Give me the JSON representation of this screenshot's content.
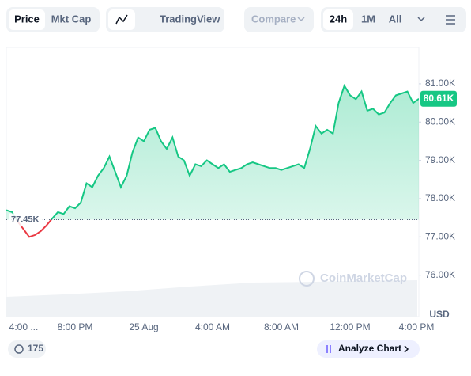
{
  "toolbar": {
    "tabs": [
      "Price",
      "Mkt Cap"
    ],
    "tradingview": "TradingView",
    "compare": "Compare",
    "ranges": [
      "24h",
      "1M",
      "All"
    ]
  },
  "chart_data": {
    "type": "line",
    "currency": "USD",
    "watermark": "CoinMarketCap",
    "color": "#16c784",
    "down_color": "#ea3943",
    "categories": [
      "4:00 ...",
      null,
      null,
      null,
      null,
      null,
      null,
      null,
      null,
      null,
      null,
      null,
      "8:00 PM",
      null,
      null,
      null,
      null,
      null,
      null,
      null,
      null,
      null,
      null,
      null,
      "25 Aug",
      null,
      null,
      null,
      null,
      null,
      null,
      null,
      null,
      null,
      null,
      null,
      "4:00 AM",
      null,
      null,
      null,
      null,
      null,
      null,
      null,
      null,
      null,
      null,
      null,
      "8:00 AM",
      null,
      null,
      null,
      null,
      null,
      null,
      null,
      null,
      null,
      null,
      null,
      "12:00 PM",
      null,
      null,
      null,
      null,
      null,
      null,
      null,
      null,
      null,
      null,
      null,
      "4:00 PM"
    ],
    "values": [
      77700,
      77650,
      77400,
      77200,
      77000,
      77050,
      77150,
      77300,
      77480,
      77650,
      77600,
      77800,
      77750,
      77900,
      78400,
      78300,
      78600,
      78800,
      79100,
      78700,
      78300,
      78600,
      79200,
      79600,
      79500,
      79800,
      79850,
      79500,
      79300,
      79600,
      79100,
      79000,
      78600,
      78900,
      78850,
      79000,
      78900,
      78800,
      78900,
      78700,
      78750,
      78800,
      78900,
      78950,
      78900,
      78850,
      78800,
      78800,
      78750,
      78800,
      78850,
      78900,
      78800,
      79300,
      79900,
      79700,
      79800,
      79700,
      80500,
      80950,
      80700,
      80600,
      80800,
      80300,
      80350,
      80200,
      80250,
      80500,
      80700,
      80750,
      80800,
      80500,
      80610
    ],
    "ylim": [
      75000,
      81950
    ],
    "yticks": [
      {
        "value": 76000,
        "label": "76.00K"
      },
      {
        "value": 77000,
        "label": "77.00K"
      },
      {
        "value": 78000,
        "label": "78.00K"
      },
      {
        "value": 79000,
        "label": "79.00K"
      },
      {
        "value": 80000,
        "label": "80.00K"
      },
      {
        "value": 81000,
        "label": "81.00K"
      }
    ],
    "reference": {
      "value": 77450,
      "label": "77.45K"
    },
    "last_price": {
      "value": 80610,
      "label": "80.61K"
    }
  },
  "footer": {
    "count": "175",
    "analyze": "Analyze Chart"
  }
}
